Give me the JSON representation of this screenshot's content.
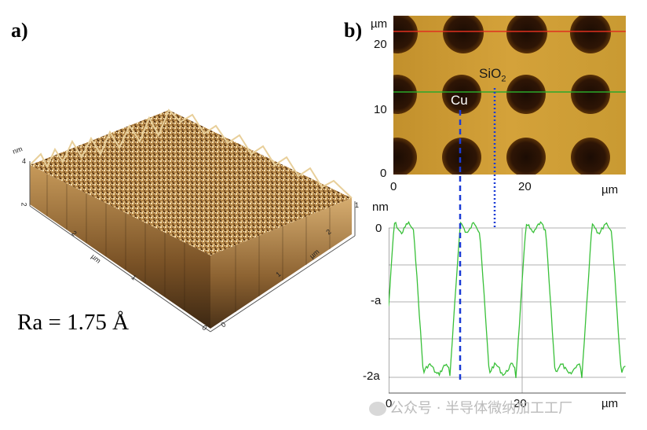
{
  "panel_a": {
    "label": "a)",
    "roughness": "Ra = 1.75 Å",
    "z_axis_label": "nm",
    "z_tick_top": "4",
    "z_tick_bottom": "2",
    "left_axis_label": "µm",
    "left_ticks": [
      "2",
      "1",
      "0"
    ],
    "right_axis_label": "µm",
    "right_ticks": [
      "2",
      "1",
      "0"
    ]
  },
  "panel_b": {
    "label": "b)",
    "image": {
      "y_axis_label": "µm",
      "y_ticks": [
        "20",
        "10",
        "0"
      ],
      "x_ticks": [
        "0",
        "20"
      ],
      "x_axis_label": "µm",
      "marker_cu": "Cu",
      "marker_sio2": "SiO",
      "marker_sio2_sub": "2",
      "line_red_color": "#e0301e",
      "line_green_color": "#2aa82a"
    },
    "profile": {
      "y_axis_label": "nm",
      "y_ticks": [
        "0",
        "-a",
        "-2a"
      ],
      "x_ticks": [
        "0",
        "20"
      ],
      "x_axis_label": "µm",
      "trace_color": "#39c039"
    }
  },
  "watermark": "公众号 · 半导体微纳加工工厂"
}
